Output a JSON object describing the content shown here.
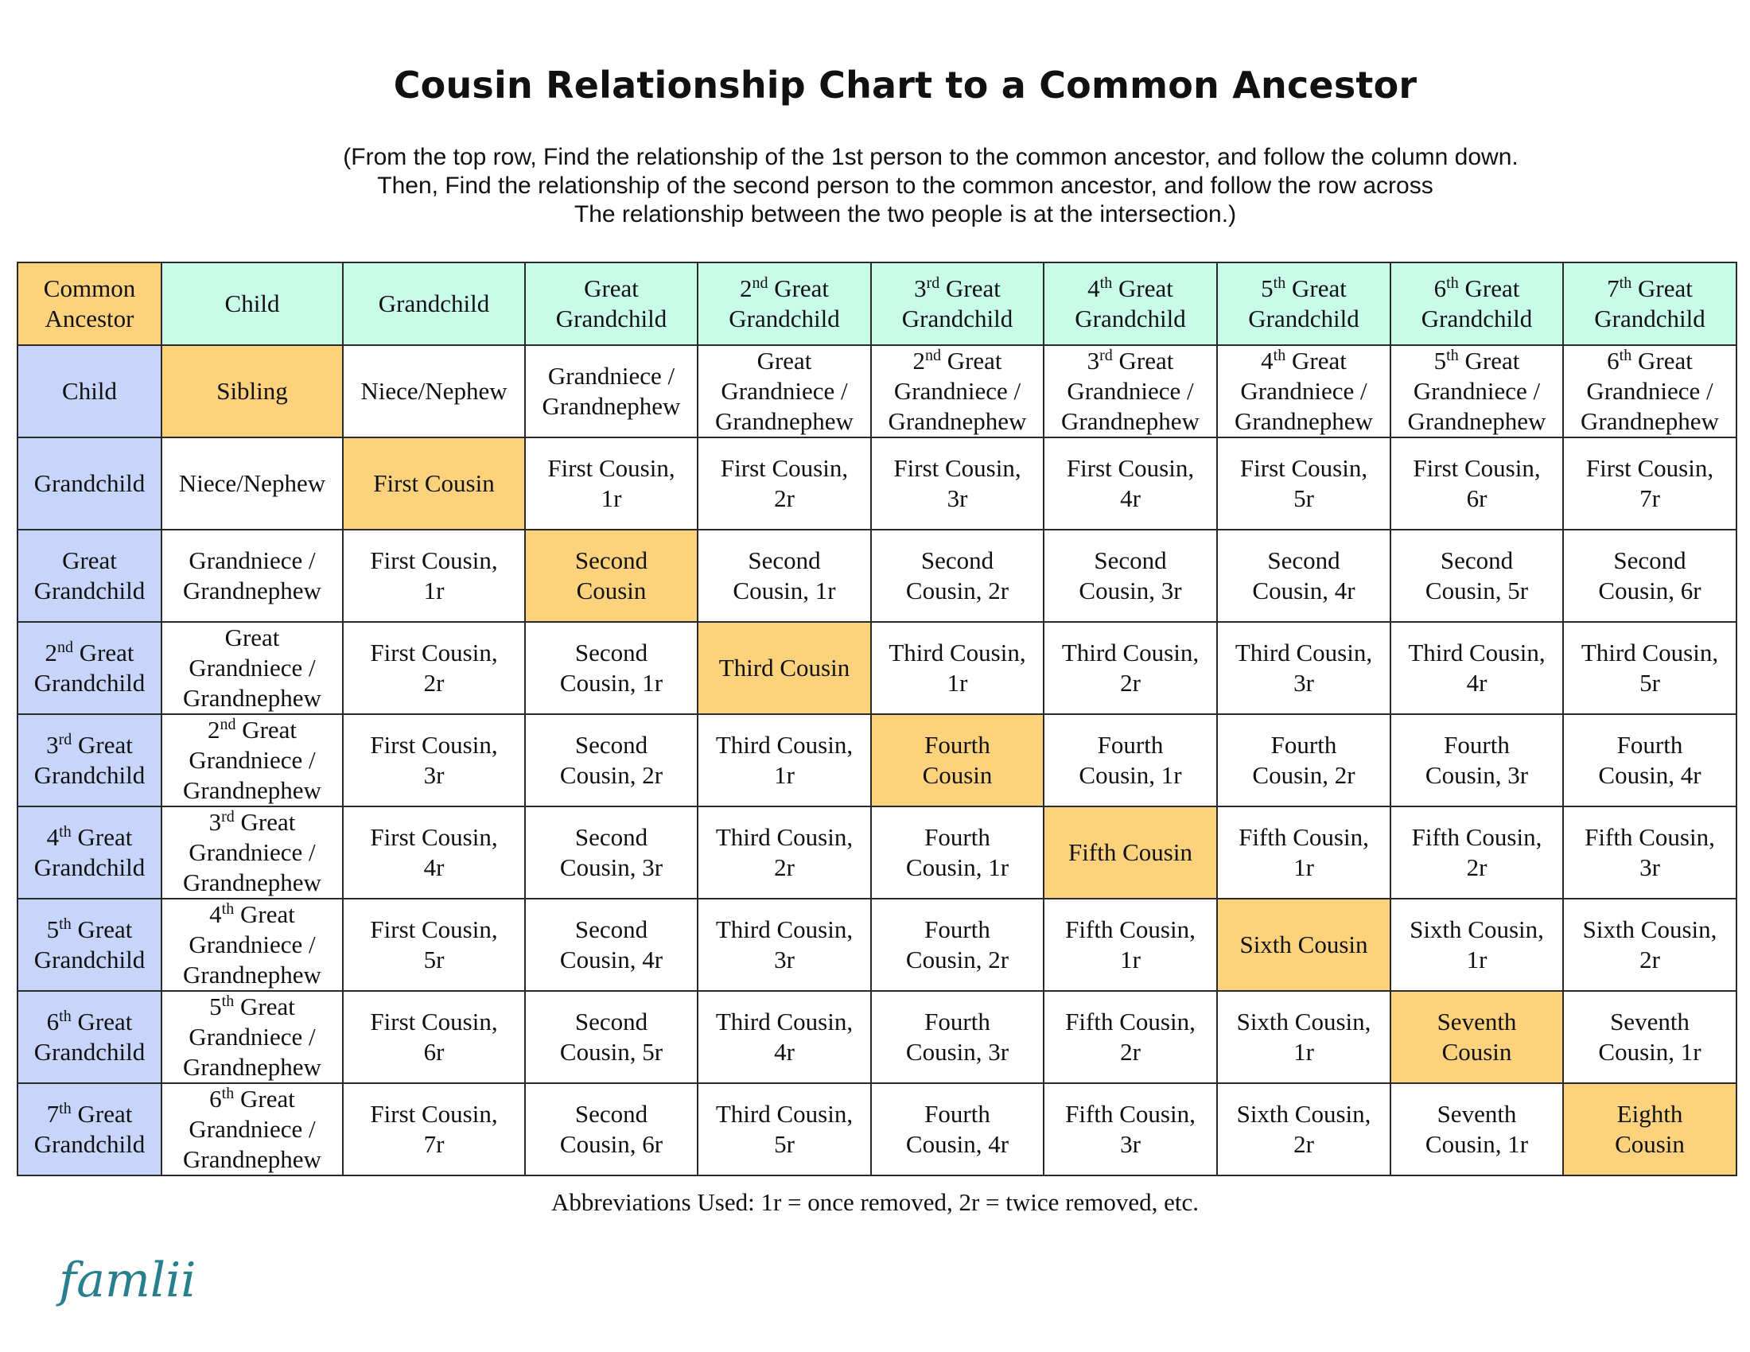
{
  "header": {
    "title": "Cousin Relationship Chart to a Common Ancestor",
    "instructions": [
      "(From the top row, Find the relationship of the 1st person to the common ancestor, and follow the column down.",
      "Then, Find the relationship of the second person to the common ancestor, and follow the row across",
      "The relationship between the two people is at the intersection.)"
    ]
  },
  "table": {
    "corner": "Common Ancestor",
    "columns": [
      "Child",
      "Grandchild",
      "Great Grandchild",
      "2nd Great Grandchild",
      "3rd Great Grandchild",
      "4th Great Grandchild",
      "5th Great Grandchild",
      "6th Great Grandchild",
      "7th Great Grandchild"
    ],
    "rows": [
      {
        "label": "Child",
        "cells": [
          "Sibling",
          "Niece/Nephew",
          "Grandniece / Grandnephew",
          "Great Grandniece / Grandnephew",
          "2nd Great Grandniece / Grandnephew",
          "3rd Great Grandniece / Grandnephew",
          "4th Great Grandniece / Grandnephew",
          "5th Great Grandniece / Grandnephew",
          "6th Great Grandniece / Grandnephew"
        ]
      },
      {
        "label": "Grandchild",
        "cells": [
          "Niece/Nephew",
          "First Cousin",
          "First Cousin, 1r",
          "First Cousin, 2r",
          "First Cousin, 3r",
          "First Cousin, 4r",
          "First Cousin, 5r",
          "First Cousin, 6r",
          "First Cousin, 7r"
        ]
      },
      {
        "label": "Great Grandchild",
        "cells": [
          "Grandniece / Grandnephew",
          "First Cousin, 1r",
          "Second Cousin",
          "Second Cousin, 1r",
          "Second Cousin, 2r",
          "Second Cousin, 3r",
          "Second Cousin, 4r",
          "Second Cousin, 5r",
          "Second Cousin, 6r"
        ]
      },
      {
        "label": "2nd Great Grandchild",
        "cells": [
          "Great Grandniece / Grandnephew",
          "First Cousin, 2r",
          "Second Cousin, 1r",
          "Third Cousin",
          "Third Cousin, 1r",
          "Third Cousin, 2r",
          "Third Cousin, 3r",
          "Third Cousin, 4r",
          "Third Cousin, 5r"
        ]
      },
      {
        "label": "3rd Great Grandchild",
        "cells": [
          "2nd Great Grandniece / Grandnephew",
          "First Cousin, 3r",
          "Second Cousin, 2r",
          "Third Cousin, 1r",
          "Fourth Cousin",
          "Fourth Cousin, 1r",
          "Fourth Cousin, 2r",
          "Fourth Cousin, 3r",
          "Fourth Cousin, 4r"
        ]
      },
      {
        "label": "4th Great Grandchild",
        "cells": [
          "3rd Great Grandniece / Grandnephew",
          "First Cousin, 4r",
          "Second Cousin, 3r",
          "Third Cousin, 2r",
          "Fourth Cousin, 1r",
          "Fifth Cousin",
          "Fifth Cousin, 1r",
          "Fifth Cousin, 2r",
          "Fifth Cousin, 3r"
        ]
      },
      {
        "label": "5th Great Grandchild",
        "cells": [
          "4th Great Grandniece / Grandnephew",
          "First Cousin, 5r",
          "Second Cousin, 4r",
          "Third Cousin, 3r",
          "Fourth Cousin, 2r",
          "Fifth Cousin, 1r",
          "Sixth Cousin",
          "Sixth Cousin, 1r",
          "Sixth Cousin, 2r"
        ]
      },
      {
        "label": "6th Great Grandchild",
        "cells": [
          "5th Great Grandniece / Grandnephew",
          "First Cousin, 6r",
          "Second Cousin, 5r",
          "Third Cousin, 4r",
          "Fourth Cousin, 3r",
          "Fifth Cousin, 2r",
          "Sixth Cousin, 1r",
          "Seventh Cousin",
          "Seventh Cousin, 1r"
        ]
      },
      {
        "label": "7th Great Grandchild",
        "cells": [
          "6th Great Grandniece / Grandnephew",
          "First Cousin, 7r",
          "Second Cousin, 6r",
          "Third Cousin, 5r",
          "Fourth Cousin, 4r",
          "Fifth Cousin, 3r",
          "Sixth Cousin, 2r",
          "Seventh Cousin, 1r",
          "Eighth Cousin"
        ]
      }
    ]
  },
  "footer": {
    "abbreviations": "Abbreviations Used: 1r = once removed, 2r = twice removed, etc.",
    "logo_text": "famlii"
  },
  "colors": {
    "corner": "#fdd27d",
    "column_header": "#c9fbe9",
    "row_header": "#c8d5fb",
    "diagonal": "#fdd27d",
    "logo": "#2a7f8f"
  }
}
